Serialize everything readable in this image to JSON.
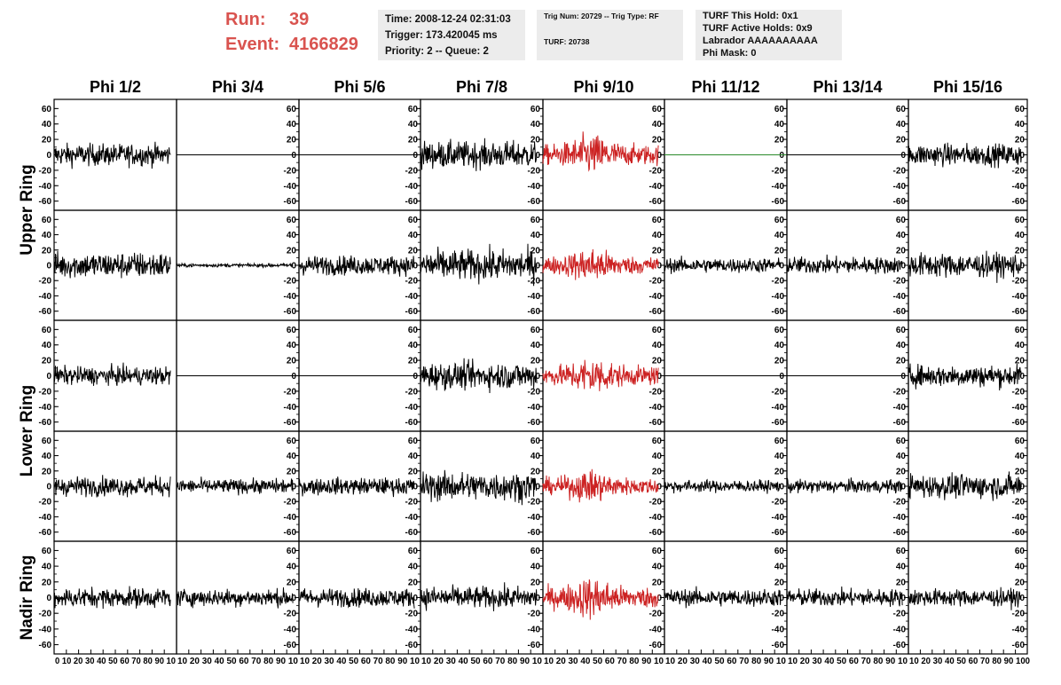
{
  "header": {
    "run_label": "Run:",
    "run_value": "39",
    "event_label": "Event:",
    "event_value": "4166829"
  },
  "info_time": [
    "Time: 2008-12-24 02:31:03",
    "Trigger: 173.420045 ms",
    "Priority: 2 -- Queue: 2"
  ],
  "info_trig": {
    "trig_line": "Trig Num: 20729 -- Trig Type: RF",
    "turf_line": "TURF: 20738"
  },
  "info_turf": [
    "TURF This Hold: 0x1",
    "TURF Active Holds: 0x9",
    "Labrador AAAAAAAAAA",
    "Phi Mask: 0"
  ],
  "colors": {
    "highlight": "#d9534f",
    "trace_default": "#000000",
    "trace_trigger": "#cc2222",
    "trace_flat_green": "#2a8a2a",
    "info_bg": "#ececec"
  },
  "chart_data": {
    "type": "line",
    "columns": [
      "Phi 1/2",
      "Phi 3/4",
      "Phi 5/6",
      "Phi 7/8",
      "Phi 9/10",
      "Phi 11/12",
      "Phi 13/14",
      "Phi 15/16"
    ],
    "rings": [
      {
        "label": "Upper Ring",
        "rows": 2
      },
      {
        "label": "Lower Ring",
        "rows": 2
      },
      {
        "label": "Nadir Ring",
        "rows": 1
      }
    ],
    "ylim": [
      -65,
      65
    ],
    "y_ticks": [
      -60,
      -40,
      -20,
      0,
      20,
      40,
      60
    ],
    "xlim": [
      0,
      100
    ],
    "x_ticks": [
      "0",
      "10",
      "20",
      "30",
      "40",
      "50",
      "60",
      "70",
      "80",
      "90",
      "100"
    ],
    "x_tick_labels": [
      "0 10 20 30 40 50 60 70 80 90 10",
      "10 20 30 40 50 60 70 80 90 10",
      "10 20 30 40 50 60 70 80 90 10",
      "10 20 30 40 50 60 70 80 90 10",
      "10 20 30 40 50 60 70 80 90 10",
      "10 20 30 40 50 60 70 80 90 10",
      "10 20 30 40 50 60 70 80 90 10",
      "10 20 30 40 50 60 70 80 90 100"
    ],
    "waveform_x_range": [
      0,
      95
    ],
    "panels": [
      {
        "row": 0,
        "col": 0,
        "amplitude": 18,
        "color": "black"
      },
      {
        "row": 0,
        "col": 1,
        "amplitude": 0,
        "color": "black"
      },
      {
        "row": 0,
        "col": 2,
        "amplitude": 0,
        "color": "black"
      },
      {
        "row": 0,
        "col": 3,
        "amplitude": 22,
        "color": "black"
      },
      {
        "row": 0,
        "col": 4,
        "amplitude": 30,
        "color": "red"
      },
      {
        "row": 0,
        "col": 5,
        "amplitude": 0,
        "color": "green"
      },
      {
        "row": 0,
        "col": 6,
        "amplitude": 0,
        "color": "black"
      },
      {
        "row": 0,
        "col": 7,
        "amplitude": 18,
        "color": "black"
      },
      {
        "row": 1,
        "col": 0,
        "amplitude": 22,
        "color": "black"
      },
      {
        "row": 1,
        "col": 1,
        "amplitude": 3,
        "color": "black"
      },
      {
        "row": 1,
        "col": 2,
        "amplitude": 16,
        "color": "black"
      },
      {
        "row": 1,
        "col": 3,
        "amplitude": 26,
        "color": "black"
      },
      {
        "row": 1,
        "col": 4,
        "amplitude": 26,
        "color": "red"
      },
      {
        "row": 1,
        "col": 5,
        "amplitude": 12,
        "color": "black"
      },
      {
        "row": 1,
        "col": 6,
        "amplitude": 14,
        "color": "black"
      },
      {
        "row": 1,
        "col": 7,
        "amplitude": 20,
        "color": "black"
      },
      {
        "row": 2,
        "col": 0,
        "amplitude": 15,
        "color": "black"
      },
      {
        "row": 2,
        "col": 1,
        "amplitude": 0,
        "color": "black"
      },
      {
        "row": 2,
        "col": 2,
        "amplitude": 0,
        "color": "black"
      },
      {
        "row": 2,
        "col": 3,
        "amplitude": 22,
        "color": "black"
      },
      {
        "row": 2,
        "col": 4,
        "amplitude": 28,
        "color": "red"
      },
      {
        "row": 2,
        "col": 5,
        "amplitude": 0,
        "color": "black"
      },
      {
        "row": 2,
        "col": 6,
        "amplitude": 0,
        "color": "black"
      },
      {
        "row": 2,
        "col": 7,
        "amplitude": 18,
        "color": "black"
      },
      {
        "row": 3,
        "col": 0,
        "amplitude": 16,
        "color": "black"
      },
      {
        "row": 3,
        "col": 1,
        "amplitude": 12,
        "color": "black"
      },
      {
        "row": 3,
        "col": 2,
        "amplitude": 14,
        "color": "black"
      },
      {
        "row": 3,
        "col": 3,
        "amplitude": 24,
        "color": "black"
      },
      {
        "row": 3,
        "col": 4,
        "amplitude": 24,
        "color": "red"
      },
      {
        "row": 3,
        "col": 5,
        "amplitude": 10,
        "color": "black"
      },
      {
        "row": 3,
        "col": 6,
        "amplitude": 11,
        "color": "black"
      },
      {
        "row": 3,
        "col": 7,
        "amplitude": 20,
        "color": "black"
      },
      {
        "row": 4,
        "col": 0,
        "amplitude": 16,
        "color": "black"
      },
      {
        "row": 4,
        "col": 1,
        "amplitude": 14,
        "color": "black"
      },
      {
        "row": 4,
        "col": 2,
        "amplitude": 15,
        "color": "black"
      },
      {
        "row": 4,
        "col": 3,
        "amplitude": 18,
        "color": "black"
      },
      {
        "row": 4,
        "col": 4,
        "amplitude": 30,
        "color": "red"
      },
      {
        "row": 4,
        "col": 5,
        "amplitude": 14,
        "color": "black"
      },
      {
        "row": 4,
        "col": 6,
        "amplitude": 14,
        "color": "black"
      },
      {
        "row": 4,
        "col": 7,
        "amplitude": 14,
        "color": "black"
      }
    ]
  }
}
